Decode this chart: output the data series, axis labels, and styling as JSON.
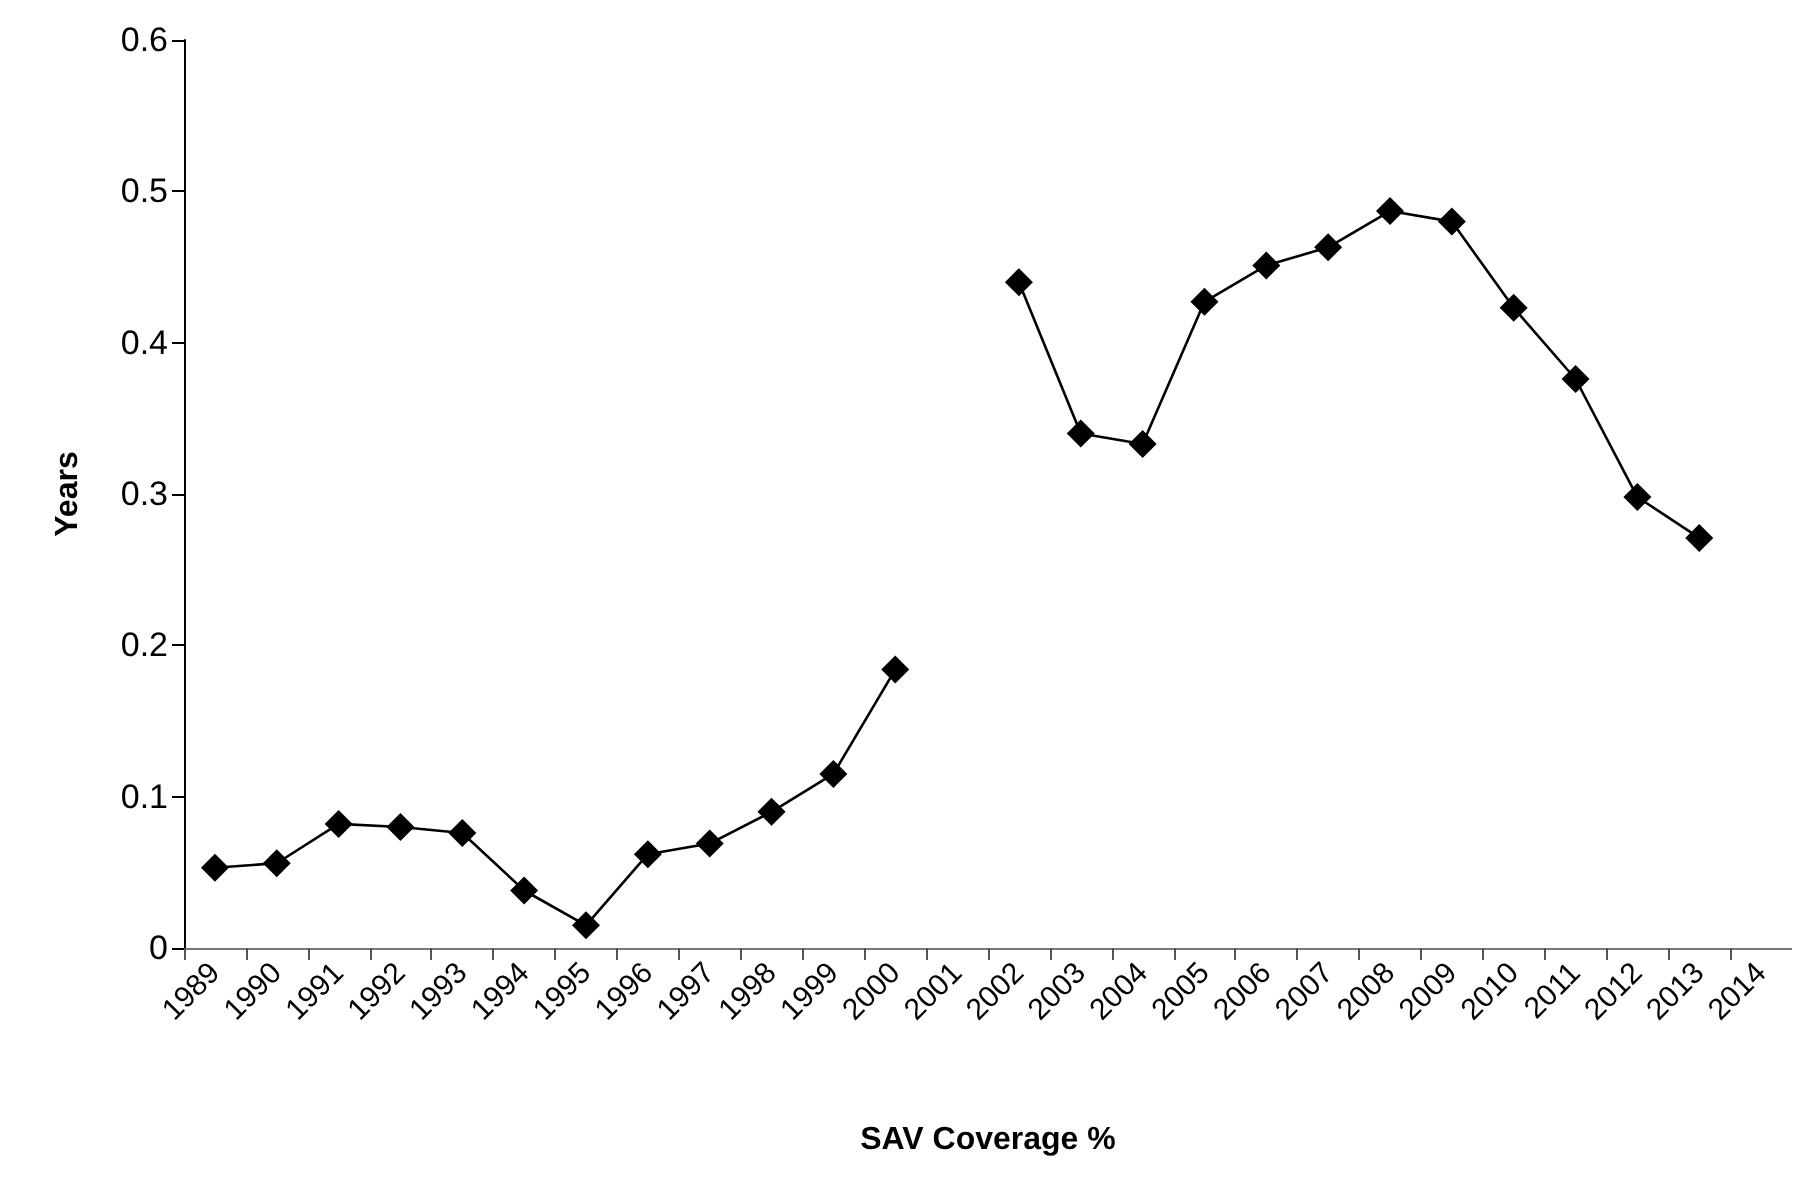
{
  "chart_data": {
    "type": "line",
    "xlabel": "SAV Coverage %",
    "ylabel": "Years",
    "categories": [
      "1989",
      "1990",
      "1991",
      "1992",
      "1993",
      "1994",
      "1995",
      "1996",
      "1997",
      "1998",
      "1999",
      "2000",
      "2001",
      "2002",
      "2003",
      "2004",
      "2005",
      "2006",
      "2007",
      "2008",
      "2009",
      "2010",
      "2011",
      "2012",
      "2013",
      "2014"
    ],
    "series": [
      {
        "color": "#000000",
        "values": [
          0.053,
          0.056,
          0.082,
          0.08,
          0.076,
          0.038,
          0.015,
          0.062,
          0.069,
          0.09,
          0.115,
          0.184,
          null,
          0.44,
          0.34,
          0.333,
          0.427,
          0.451,
          0.463,
          0.487,
          0.48,
          0.423,
          0.376,
          0.298,
          0.271,
          null
        ]
      }
    ],
    "ylim": [
      0,
      0.6
    ],
    "yticks": [
      0,
      0.1,
      0.2,
      0.3,
      0.4,
      0.5,
      0.6
    ],
    "marker": "diamond",
    "line_style": "solid"
  }
}
